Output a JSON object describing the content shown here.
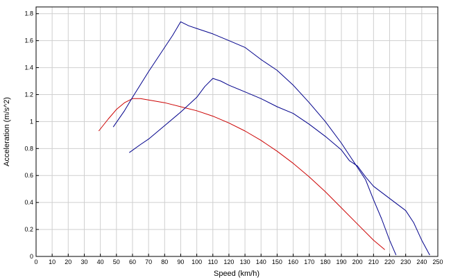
{
  "chart_data": {
    "type": "line",
    "xlabel": "Speed (km/h)",
    "ylabel": "Acceleration (m/s^2)",
    "xlim": [
      0,
      250
    ],
    "ylim": [
      0,
      1.85
    ],
    "x_ticks": [
      "0",
      "10",
      "20",
      "30",
      "40",
      "50",
      "60",
      "70",
      "80",
      "90",
      "100",
      "110",
      "120",
      "130",
      "140",
      "150",
      "160",
      "170",
      "180",
      "190",
      "200",
      "210",
      "220",
      "230",
      "240",
      "250"
    ],
    "y_ticks": [
      "0",
      "0.2",
      "0.4",
      "0.6",
      "0.8",
      "1",
      "1.2",
      "1.4",
      "1.6",
      "1.8"
    ],
    "grid": true,
    "series": [
      {
        "color": "#cc0000",
        "points": [
          [
            39,
            0.93
          ],
          [
            45,
            1.02
          ],
          [
            50,
            1.09
          ],
          [
            55,
            1.14
          ],
          [
            60,
            1.17
          ],
          [
            65,
            1.17
          ],
          [
            70,
            1.16
          ],
          [
            80,
            1.14
          ],
          [
            90,
            1.11
          ],
          [
            100,
            1.08
          ],
          [
            110,
            1.04
          ],
          [
            120,
            0.99
          ],
          [
            130,
            0.93
          ],
          [
            140,
            0.86
          ],
          [
            150,
            0.78
          ],
          [
            160,
            0.69
          ],
          [
            170,
            0.59
          ],
          [
            180,
            0.48
          ],
          [
            190,
            0.36
          ],
          [
            200,
            0.24
          ],
          [
            210,
            0.12
          ],
          [
            217,
            0.05
          ]
        ]
      },
      {
        "color": "#00008b",
        "points": [
          [
            48,
            0.96
          ],
          [
            55,
            1.08
          ],
          [
            60,
            1.18
          ],
          [
            70,
            1.37
          ],
          [
            80,
            1.55
          ],
          [
            85,
            1.64
          ],
          [
            90,
            1.74
          ],
          [
            95,
            1.71
          ],
          [
            100,
            1.69
          ],
          [
            110,
            1.65
          ],
          [
            120,
            1.6
          ],
          [
            130,
            1.55
          ],
          [
            140,
            1.46
          ],
          [
            150,
            1.38
          ],
          [
            160,
            1.27
          ],
          [
            170,
            1.14
          ],
          [
            180,
            1.0
          ],
          [
            190,
            0.84
          ],
          [
            200,
            0.66
          ],
          [
            205,
            0.57
          ],
          [
            210,
            0.42
          ],
          [
            215,
            0.28
          ],
          [
            220,
            0.12
          ],
          [
            224,
            0.01
          ]
        ]
      },
      {
        "color": "#00008b",
        "points": [
          [
            58,
            0.77
          ],
          [
            65,
            0.83
          ],
          [
            70,
            0.87
          ],
          [
            80,
            0.97
          ],
          [
            90,
            1.07
          ],
          [
            100,
            1.18
          ],
          [
            105,
            1.26
          ],
          [
            110,
            1.32
          ],
          [
            115,
            1.3
          ],
          [
            120,
            1.27
          ],
          [
            130,
            1.22
          ],
          [
            140,
            1.17
          ],
          [
            150,
            1.11
          ],
          [
            160,
            1.06
          ],
          [
            170,
            0.98
          ],
          [
            180,
            0.89
          ],
          [
            190,
            0.79
          ],
          [
            195,
            0.71
          ],
          [
            200,
            0.67
          ],
          [
            205,
            0.59
          ],
          [
            210,
            0.52
          ],
          [
            220,
            0.43
          ],
          [
            230,
            0.34
          ],
          [
            235,
            0.25
          ],
          [
            240,
            0.12
          ],
          [
            245,
            0.01
          ]
        ]
      }
    ]
  }
}
